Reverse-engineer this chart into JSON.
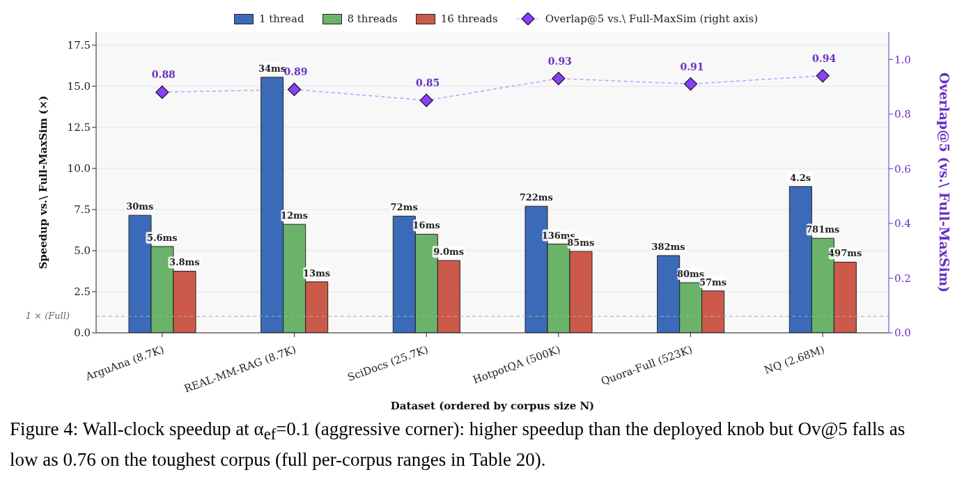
{
  "chart_data": {
    "type": "bar",
    "xlabel": "Dataset (ordered by corpus size N)",
    "ylabel": "Speedup vs.\\ Full-MaxSim (×)",
    "y2label": "Overlap@5  (vs.\\ Full-MaxSim)",
    "categories": [
      "ArguAna (8.7K)",
      "REAL-MM-RAG (8.7K)",
      "SciDocs (25.7K)",
      "HotpotQA (500K)",
      "Quora-Full (523K)",
      "NQ (2.68M)"
    ],
    "series": [
      {
        "name": "1 thread",
        "color": "#3b6bb8",
        "values": [
          7.15,
          15.55,
          7.1,
          7.7,
          4.7,
          8.9
        ]
      },
      {
        "name": "8 threads",
        "color": "#6bb36b",
        "values": [
          5.25,
          6.6,
          6.0,
          5.4,
          3.05,
          5.75
        ]
      },
      {
        "name": "16 threads",
        "color": "#cc5a4a",
        "values": [
          3.75,
          3.1,
          4.4,
          4.95,
          2.55,
          4.3
        ]
      },
      {
        "name": "Overlap@5 vs.\\ Full-MaxSim (right axis)",
        "type": "line",
        "axis": "y2",
        "color": "#8a3ffc",
        "marker": "diamond",
        "line_style": "dashed",
        "values": [
          0.88,
          0.89,
          0.85,
          0.93,
          0.91,
          0.94
        ],
        "value_labels": [
          "0.88",
          "0.89",
          "0.85",
          "0.93",
          "0.91",
          "0.94"
        ]
      }
    ],
    "ylim": [
      0,
      18.3
    ],
    "yticks": [
      {
        "value": 0,
        "label": "0.0"
      },
      2.5,
      {
        "value": 5,
        "label": "5.0"
      },
      7.5,
      {
        "value": 10,
        "label": "10.0"
      },
      12.5,
      {
        "value": 15,
        "label": "15.0"
      },
      17.5
    ],
    "y2lim": [
      0,
      1.1
    ],
    "y2ticks": [
      {
        "value": 0,
        "label": "0.0"
      },
      0.2,
      0.4,
      0.6,
      0.8,
      {
        "value": 1,
        "label": "1.0"
      }
    ],
    "ref_lines": [
      {
        "axis": "y",
        "value": 1,
        "label": "1 × (Full)",
        "color": "#aaaaaa",
        "line_style": "dashed"
      }
    ],
    "grid": "y",
    "legend": "top",
    "annotations": [
      "30ms",
      "5.6ms",
      "3.8ms",
      "34ms",
      "12ms",
      "13ms",
      "72ms",
      "16ms",
      "9.0ms",
      "722ms",
      "136ms",
      "85ms",
      "382ms",
      "80ms",
      "57ms",
      "4.2s",
      "781ms",
      "497ms",
      "Figure 4: Wall-clock speedup at α$_{ef}$=0.1 (aggressive corner): higher speedup than the deployed knob but Ov@5 falls as low as 0.76 on the toughest corpus (full per-corpus ranges in Table 20)."
    ]
  }
}
